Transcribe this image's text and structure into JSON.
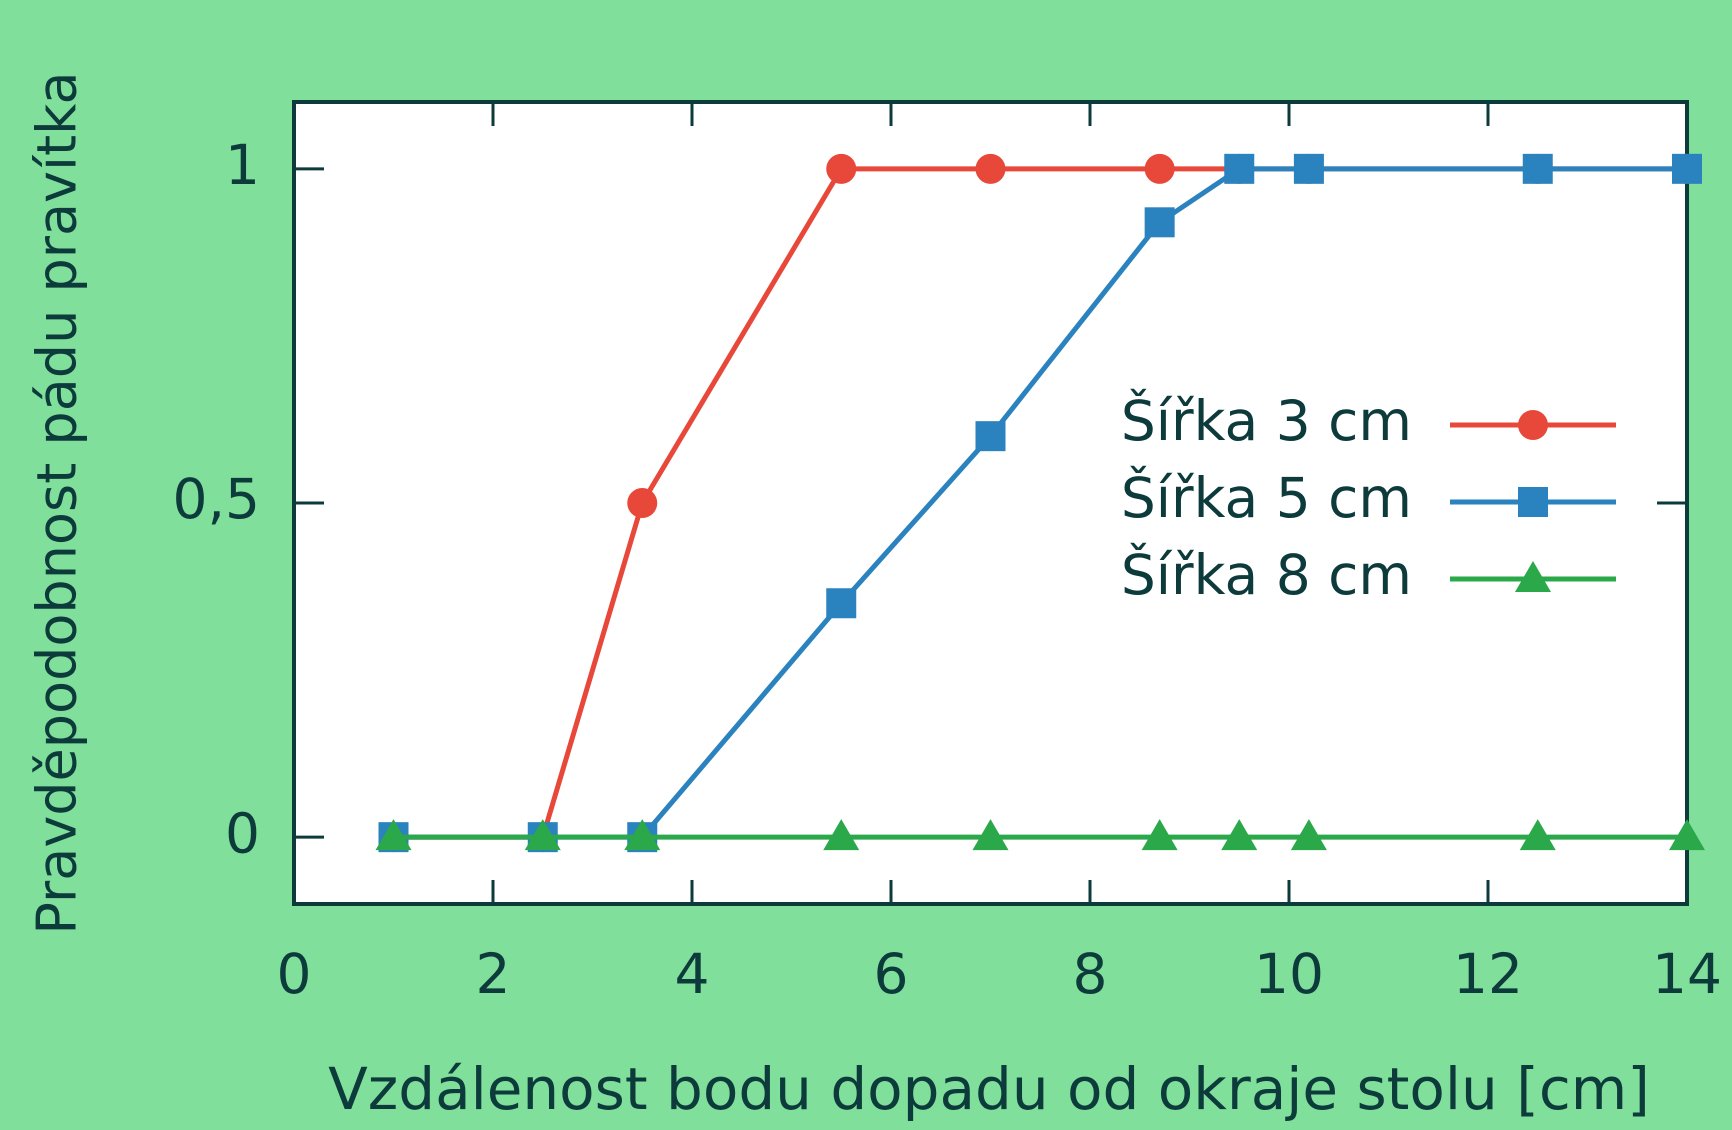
{
  "chart_data": {
    "type": "line",
    "x_label": "Vzdálenost bodu dopadu od okraje stolu [cm]",
    "y_label": "Pravděpodobnost pádu pravítka",
    "x": [
      1,
      2.5,
      3.5,
      5.5,
      7,
      8.7,
      9.5,
      10.2,
      12.5,
      14
    ],
    "series": [
      {
        "name": "Šířka 3 cm",
        "color": "#e8483a",
        "marker": "circle",
        "values": [
          0,
          0,
          0.5,
          1,
          1,
          1,
          1,
          1,
          1,
          1
        ]
      },
      {
        "name": "Šířka 5 cm",
        "color": "#2a82bf",
        "marker": "square",
        "values": [
          0,
          0,
          0,
          0.35,
          0.6,
          0.92,
          1,
          1,
          1,
          1
        ]
      },
      {
        "name": "Šířka 8 cm",
        "color": "#2aa84a",
        "marker": "triangle",
        "values": [
          0,
          0,
          0,
          0,
          0,
          0,
          0,
          0,
          0,
          0
        ]
      }
    ],
    "xlim": [
      0,
      14
    ],
    "xticks": [
      0,
      2,
      4,
      6,
      8,
      10,
      12,
      14
    ],
    "ylim": [
      -0.1,
      1.1
    ],
    "yticks": [
      0,
      {
        "value": 0.5,
        "label": "0,5"
      },
      1
    ],
    "legend": "right"
  }
}
